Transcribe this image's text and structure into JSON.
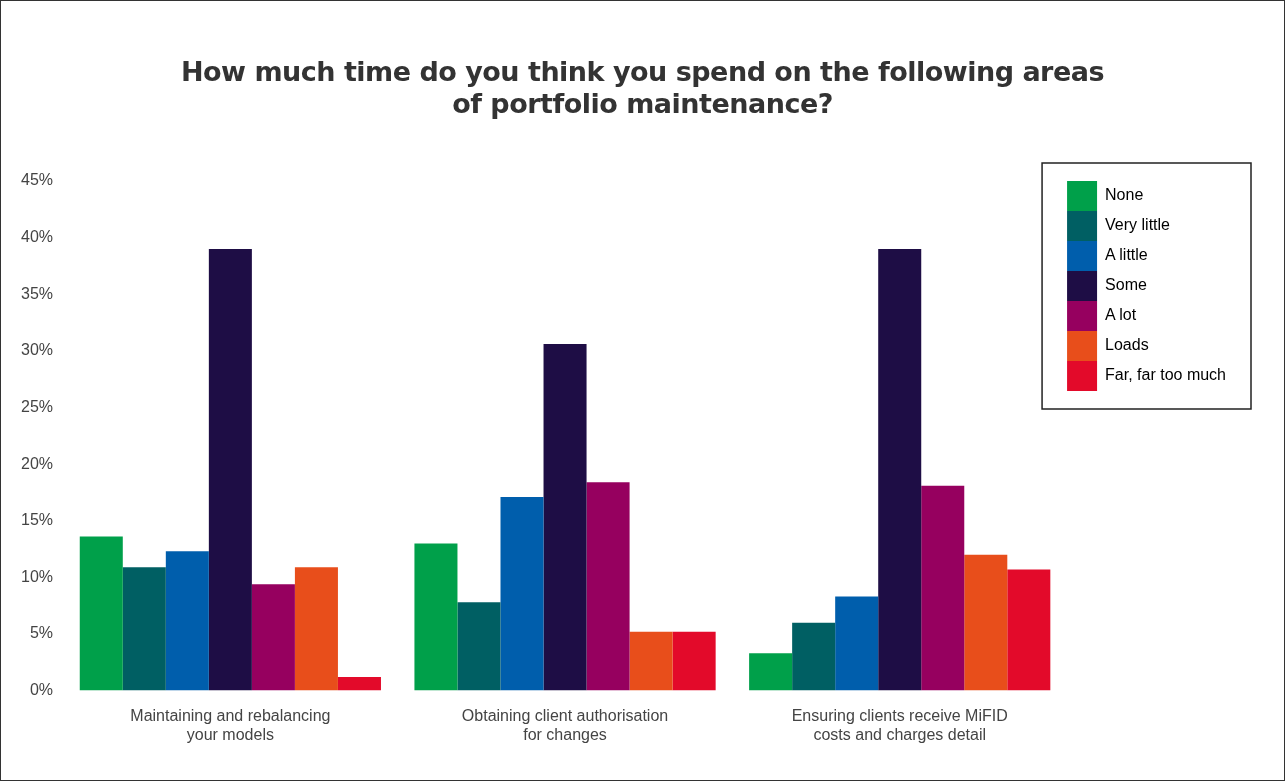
{
  "chart_data": {
    "type": "bar",
    "title": "How much time do you think you spend on the following areas of portfolio maintenance?",
    "categories": [
      "Maintaining and rebalancing your models",
      "Obtaining client authorisation for changes",
      "Ensuring clients receive MiFID costs and charges detail"
    ],
    "series": [
      {
        "name": "None",
        "color": "#00a04a",
        "values": [
          13.6,
          13.0,
          3.3
        ]
      },
      {
        "name": "Very little",
        "color": "#005f63",
        "values": [
          10.9,
          7.8,
          6.0
        ]
      },
      {
        "name": "A little",
        "color": "#005eac",
        "values": [
          12.3,
          17.1,
          8.3
        ]
      },
      {
        "name": "Some",
        "color": "#1e0d45",
        "values": [
          39.0,
          30.6,
          39.0
        ]
      },
      {
        "name": "A lot",
        "color": "#96005f",
        "values": [
          9.4,
          18.4,
          18.1
        ]
      },
      {
        "name": "Loads",
        "color": "#e84e1b",
        "values": [
          10.9,
          5.2,
          12.0
        ]
      },
      {
        "name": "Far, far too much",
        "color": "#e30a2a",
        "values": [
          1.2,
          5.2,
          10.7
        ]
      }
    ],
    "ylim": [
      0,
      45
    ],
    "yticks": [
      {
        "value": 0,
        "label": "0%"
      },
      {
        "value": 5,
        "label": "5%"
      },
      {
        "value": 10,
        "label": "10%"
      },
      {
        "value": 15,
        "label": "15%"
      },
      {
        "value": 20,
        "label": "20%"
      },
      {
        "value": 25,
        "label": "25%"
      },
      {
        "value": 30,
        "label": "30%"
      },
      {
        "value": 35,
        "label": "35%"
      },
      {
        "value": 40,
        "label": "40%"
      },
      {
        "value": 45,
        "label": "45%"
      }
    ],
    "grid": false,
    "legend": "right"
  }
}
